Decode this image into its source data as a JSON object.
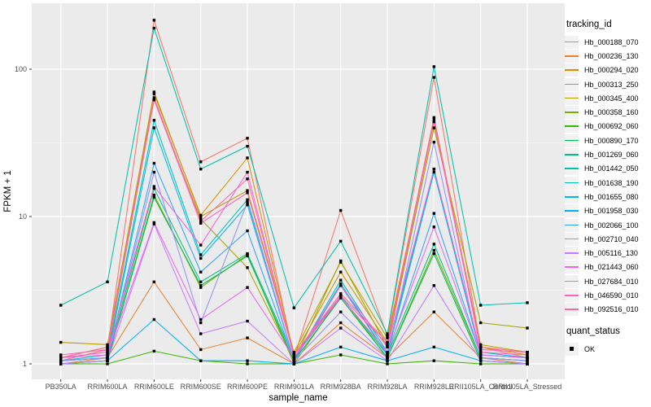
{
  "figure": {
    "background": "#FFFFFF",
    "panel_background": "#EBEBEB",
    "grid_color": "#FFFFFF",
    "axis_text_color": "#4D4D4D",
    "title_color": "#000000",
    "point_color": "#000000"
  },
  "legend": {
    "tracking_title": "tracking_id",
    "quant_title": "quant_status",
    "quant_items": [
      {
        "label": "OK",
        "marker": "black-square"
      }
    ]
  },
  "chart_data": {
    "type": "line",
    "title": "",
    "xlabel": "sample_name",
    "ylabel": "FPKM + 1",
    "y_scale": "log10",
    "y_ticks": [
      1,
      10,
      100
    ],
    "y_tick_labels": [
      "1",
      "10",
      "100"
    ],
    "ylim": [
      0.9,
      260
    ],
    "grid": true,
    "legend_position": "right",
    "point_marker": "filled-black-square",
    "x_categories": [
      "PB350LA",
      "RRIM600LA",
      "RRIM600LE",
      "RRIM600SE",
      "RRIM600PE",
      "RRIM901LA",
      "RRIM928BA",
      "RRIM928LA",
      "RRIM928LE",
      "RRII105LA_Control",
      "RRII105LA_Stressed"
    ],
    "series": [
      {
        "name": "Hb_000188_070",
        "color": "#F8766D",
        "values": [
          1.05,
          1.25,
          215,
          23.5,
          34,
          1.1,
          11,
          1.55,
          88,
          1.3,
          1.1
        ]
      },
      {
        "name": "Hb_000236_130",
        "color": "#EA8331",
        "values": [
          1.0,
          1.1,
          3.6,
          1.25,
          1.5,
          1.0,
          1.9,
          1.1,
          2.25,
          1.1,
          1.0
        ]
      },
      {
        "name": "Hb_000294_020",
        "color": "#D89000",
        "values": [
          1.1,
          1.3,
          68,
          10.2,
          25,
          1.15,
          4.2,
          1.4,
          47,
          1.3,
          1.15
        ]
      },
      {
        "name": "Hb_000313_250",
        "color": "#C09B00",
        "values": [
          1.4,
          1.35,
          70,
          10.0,
          15,
          1.2,
          4.9,
          1.5,
          44,
          1.35,
          1.2
        ]
      },
      {
        "name": "Hb_000345_400",
        "color": "#A3A500",
        "values": [
          1.1,
          1.2,
          62,
          9.6,
          4.5,
          1.05,
          5.0,
          1.3,
          40,
          1.9,
          1.75
        ]
      },
      {
        "name": "Hb_000358_160",
        "color": "#7CAE00",
        "values": [
          1.0,
          1.05,
          14,
          3.3,
          5.5,
          1.0,
          2.9,
          1.1,
          5.9,
          1.1,
          1.05
        ]
      },
      {
        "name": "Hb_000692_060",
        "color": "#39B600",
        "values": [
          1.0,
          1.0,
          1.22,
          1.05,
          1.0,
          1.0,
          1.15,
          1.0,
          1.05,
          1.0,
          1.0
        ]
      },
      {
        "name": "Hb_000890_170",
        "color": "#00BB4E",
        "values": [
          1.0,
          1.05,
          13.5,
          3.4,
          5.4,
          1.05,
          2.8,
          1.1,
          5.6,
          1.05,
          1.0
        ]
      },
      {
        "name": "Hb_001269_060",
        "color": "#00C087",
        "values": [
          1.05,
          1.1,
          15.5,
          3.6,
          5.6,
          1.1,
          2.9,
          1.15,
          6.5,
          1.1,
          1.05
        ]
      },
      {
        "name": "Hb_001442_050",
        "color": "#00C1A9",
        "values": [
          2.5,
          3.6,
          190,
          21,
          30,
          2.4,
          6.8,
          1.6,
          104,
          2.5,
          2.6
        ]
      },
      {
        "name": "Hb_001638_190",
        "color": "#00BFC4",
        "values": [
          1.05,
          1.15,
          45,
          5.5,
          13,
          1.05,
          3.7,
          1.2,
          21,
          1.2,
          1.1
        ]
      },
      {
        "name": "Hb_001655_080",
        "color": "#00BAE0",
        "values": [
          1.05,
          1.1,
          40,
          5.2,
          12,
          1.05,
          3.5,
          1.15,
          20,
          1.15,
          1.1
        ]
      },
      {
        "name": "Hb_001958_030",
        "color": "#00B0F6",
        "values": [
          1.0,
          1.05,
          2.0,
          1.05,
          1.05,
          1.0,
          1.3,
          1.05,
          1.3,
          1.05,
          1.0
        ]
      },
      {
        "name": "Hb_002066_100",
        "color": "#35A2FF",
        "values": [
          1.05,
          1.1,
          23,
          4.2,
          8.0,
          1.05,
          3.4,
          1.15,
          10.5,
          1.15,
          1.1
        ]
      },
      {
        "name": "Hb_002710_040",
        "color": "#9590FF",
        "values": [
          1.05,
          1.1,
          20,
          1.9,
          12.5,
          1.05,
          2.25,
          1.1,
          32,
          1.1,
          1.05
        ]
      },
      {
        "name": "Hb_005116_130",
        "color": "#C77CFF",
        "values": [
          1.0,
          1.05,
          8.9,
          1.6,
          1.95,
          1.0,
          1.75,
          1.05,
          3.4,
          1.05,
          1.0
        ]
      },
      {
        "name": "Hb_021443_060",
        "color": "#E76BF3",
        "values": [
          1.1,
          1.15,
          9.1,
          2.0,
          3.3,
          1.1,
          2.85,
          1.2,
          8.5,
          1.15,
          1.1
        ]
      },
      {
        "name": "Hb_027684_010",
        "color": "#FA62DB",
        "values": [
          1.1,
          1.2,
          16,
          6.4,
          20,
          1.1,
          3.4,
          1.3,
          21,
          1.2,
          1.15
        ]
      },
      {
        "name": "Hb_046590_010",
        "color": "#FF62BC",
        "values": [
          1.15,
          1.25,
          62,
          9.0,
          14.5,
          1.15,
          2.9,
          1.35,
          44,
          1.25,
          1.2
        ]
      },
      {
        "name": "Hb_092516_010",
        "color": "#FF6A98",
        "values": [
          1.1,
          1.3,
          64,
          9.3,
          18,
          1.15,
          3.0,
          1.4,
          46,
          1.3,
          1.2
        ]
      }
    ]
  }
}
